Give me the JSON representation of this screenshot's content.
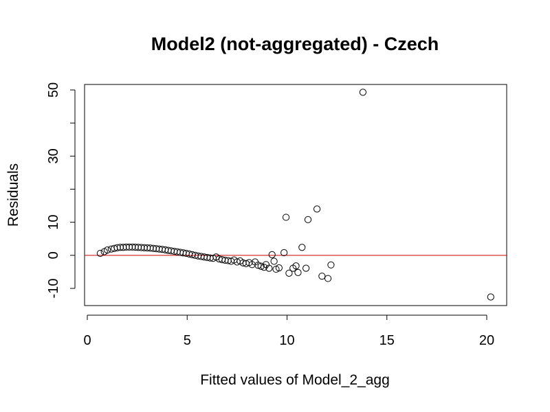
{
  "chart_data": {
    "type": "scatter",
    "title": "Model2 (not-aggregated) - Czech",
    "xlabel": "Fitted values of Model_2_agg",
    "ylabel": "Residuals",
    "xlim": [
      0,
      21
    ],
    "ylim": [
      -15,
      51
    ],
    "xticks": [
      0,
      5,
      10,
      15,
      20
    ],
    "yticks": [
      -10,
      0,
      10,
      30,
      50
    ],
    "yticks_unlabeled": [
      20,
      40
    ],
    "grid": false,
    "reference_line": {
      "y": 0,
      "color": "#cc0000"
    },
    "point_color": "#000000",
    "series": [
      {
        "values": [
          {
            "x": 0.65,
            "y": 0.6
          },
          {
            "x": 0.85,
            "y": 1.1
          },
          {
            "x": 1.0,
            "y": 1.6
          },
          {
            "x": 1.2,
            "y": 1.9
          },
          {
            "x": 1.35,
            "y": 2.1
          },
          {
            "x": 1.5,
            "y": 2.3
          },
          {
            "x": 1.65,
            "y": 2.4
          },
          {
            "x": 1.8,
            "y": 2.4
          },
          {
            "x": 1.95,
            "y": 2.5
          },
          {
            "x": 2.1,
            "y": 2.5
          },
          {
            "x": 2.25,
            "y": 2.5
          },
          {
            "x": 2.4,
            "y": 2.45
          },
          {
            "x": 2.55,
            "y": 2.4
          },
          {
            "x": 2.7,
            "y": 2.35
          },
          {
            "x": 2.85,
            "y": 2.3
          },
          {
            "x": 3.0,
            "y": 2.25
          },
          {
            "x": 3.15,
            "y": 2.2
          },
          {
            "x": 3.3,
            "y": 2.1
          },
          {
            "x": 3.45,
            "y": 2.0
          },
          {
            "x": 3.6,
            "y": 1.9
          },
          {
            "x": 3.75,
            "y": 1.8
          },
          {
            "x": 3.9,
            "y": 1.65
          },
          {
            "x": 4.05,
            "y": 1.5
          },
          {
            "x": 4.2,
            "y": 1.35
          },
          {
            "x": 4.35,
            "y": 1.2
          },
          {
            "x": 4.5,
            "y": 1.05
          },
          {
            "x": 4.65,
            "y": 0.9
          },
          {
            "x": 4.8,
            "y": 0.75
          },
          {
            "x": 4.95,
            "y": 0.6
          },
          {
            "x": 5.1,
            "y": 0.4
          },
          {
            "x": 5.25,
            "y": 0.2
          },
          {
            "x": 5.4,
            "y": 0.0
          },
          {
            "x": 5.55,
            "y": -0.2
          },
          {
            "x": 5.7,
            "y": -0.35
          },
          {
            "x": 5.85,
            "y": -0.5
          },
          {
            "x": 6.0,
            "y": -0.65
          },
          {
            "x": 6.15,
            "y": -0.8
          },
          {
            "x": 6.3,
            "y": -0.9
          },
          {
            "x": 6.45,
            "y": -0.5
          },
          {
            "x": 6.6,
            "y": -1.1
          },
          {
            "x": 6.75,
            "y": -1.3
          },
          {
            "x": 6.9,
            "y": -1.5
          },
          {
            "x": 7.05,
            "y": -1.6
          },
          {
            "x": 7.2,
            "y": -1.8
          },
          {
            "x": 7.35,
            "y": -1.4
          },
          {
            "x": 7.5,
            "y": -2.0
          },
          {
            "x": 7.65,
            "y": -1.7
          },
          {
            "x": 7.8,
            "y": -2.3
          },
          {
            "x": 7.95,
            "y": -2.5
          },
          {
            "x": 8.1,
            "y": -2.2
          },
          {
            "x": 8.25,
            "y": -2.8
          },
          {
            "x": 8.4,
            "y": -2.0
          },
          {
            "x": 8.55,
            "y": -3.0
          },
          {
            "x": 8.7,
            "y": -3.3
          },
          {
            "x": 8.85,
            "y": -3.6
          },
          {
            "x": 8.95,
            "y": -2.8
          },
          {
            "x": 9.1,
            "y": -3.9
          },
          {
            "x": 9.25,
            "y": 0.2
          },
          {
            "x": 9.35,
            "y": -1.8
          },
          {
            "x": 9.45,
            "y": -4.2
          },
          {
            "x": 9.6,
            "y": -3.8
          },
          {
            "x": 9.85,
            "y": 0.8
          },
          {
            "x": 9.95,
            "y": 11.5
          },
          {
            "x": 10.1,
            "y": -5.4
          },
          {
            "x": 10.3,
            "y": -3.9
          },
          {
            "x": 10.45,
            "y": -3.2
          },
          {
            "x": 10.55,
            "y": -5.2
          },
          {
            "x": 10.75,
            "y": 2.4
          },
          {
            "x": 10.95,
            "y": -3.9
          },
          {
            "x": 11.05,
            "y": 10.8
          },
          {
            "x": 11.5,
            "y": 14.0
          },
          {
            "x": 11.75,
            "y": -6.3
          },
          {
            "x": 12.05,
            "y": -7.0
          },
          {
            "x": 12.2,
            "y": -2.9
          },
          {
            "x": 13.8,
            "y": 49.3
          },
          {
            "x": 20.2,
            "y": -12.6
          }
        ]
      }
    ]
  }
}
